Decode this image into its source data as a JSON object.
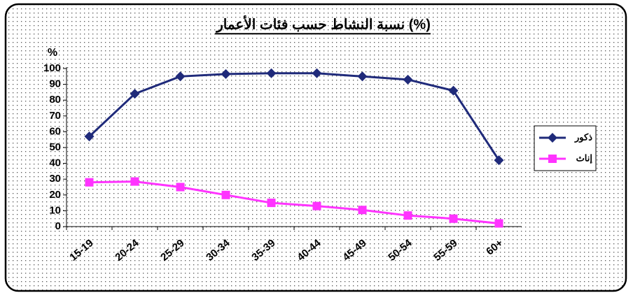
{
  "chart_data": {
    "type": "line",
    "title": "نسبة النشاط حسب فئات الأعمار (%)",
    "y_label": "%",
    "categories": [
      "15-19",
      "20-24",
      "25-29",
      "30-34",
      "35-39",
      "40-44",
      "45-49",
      "50-54",
      "55-59",
      "60+"
    ],
    "series": [
      {
        "name": "ذكور",
        "color": "#1f2a7a",
        "marker": "diamond",
        "values": [
          57,
          84,
          95,
          96.5,
          97,
          97,
          95,
          93,
          86,
          42
        ]
      },
      {
        "name": "إناث",
        "color": "#ff33ff",
        "marker": "square",
        "values": [
          28,
          28.5,
          25,
          20,
          15,
          13,
          10.5,
          7,
          5,
          2
        ]
      }
    ],
    "ylim": [
      0,
      100
    ],
    "yticks": [
      0,
      10,
      20,
      30,
      40,
      50,
      60,
      70,
      80,
      90,
      100
    ],
    "legend": "right"
  }
}
